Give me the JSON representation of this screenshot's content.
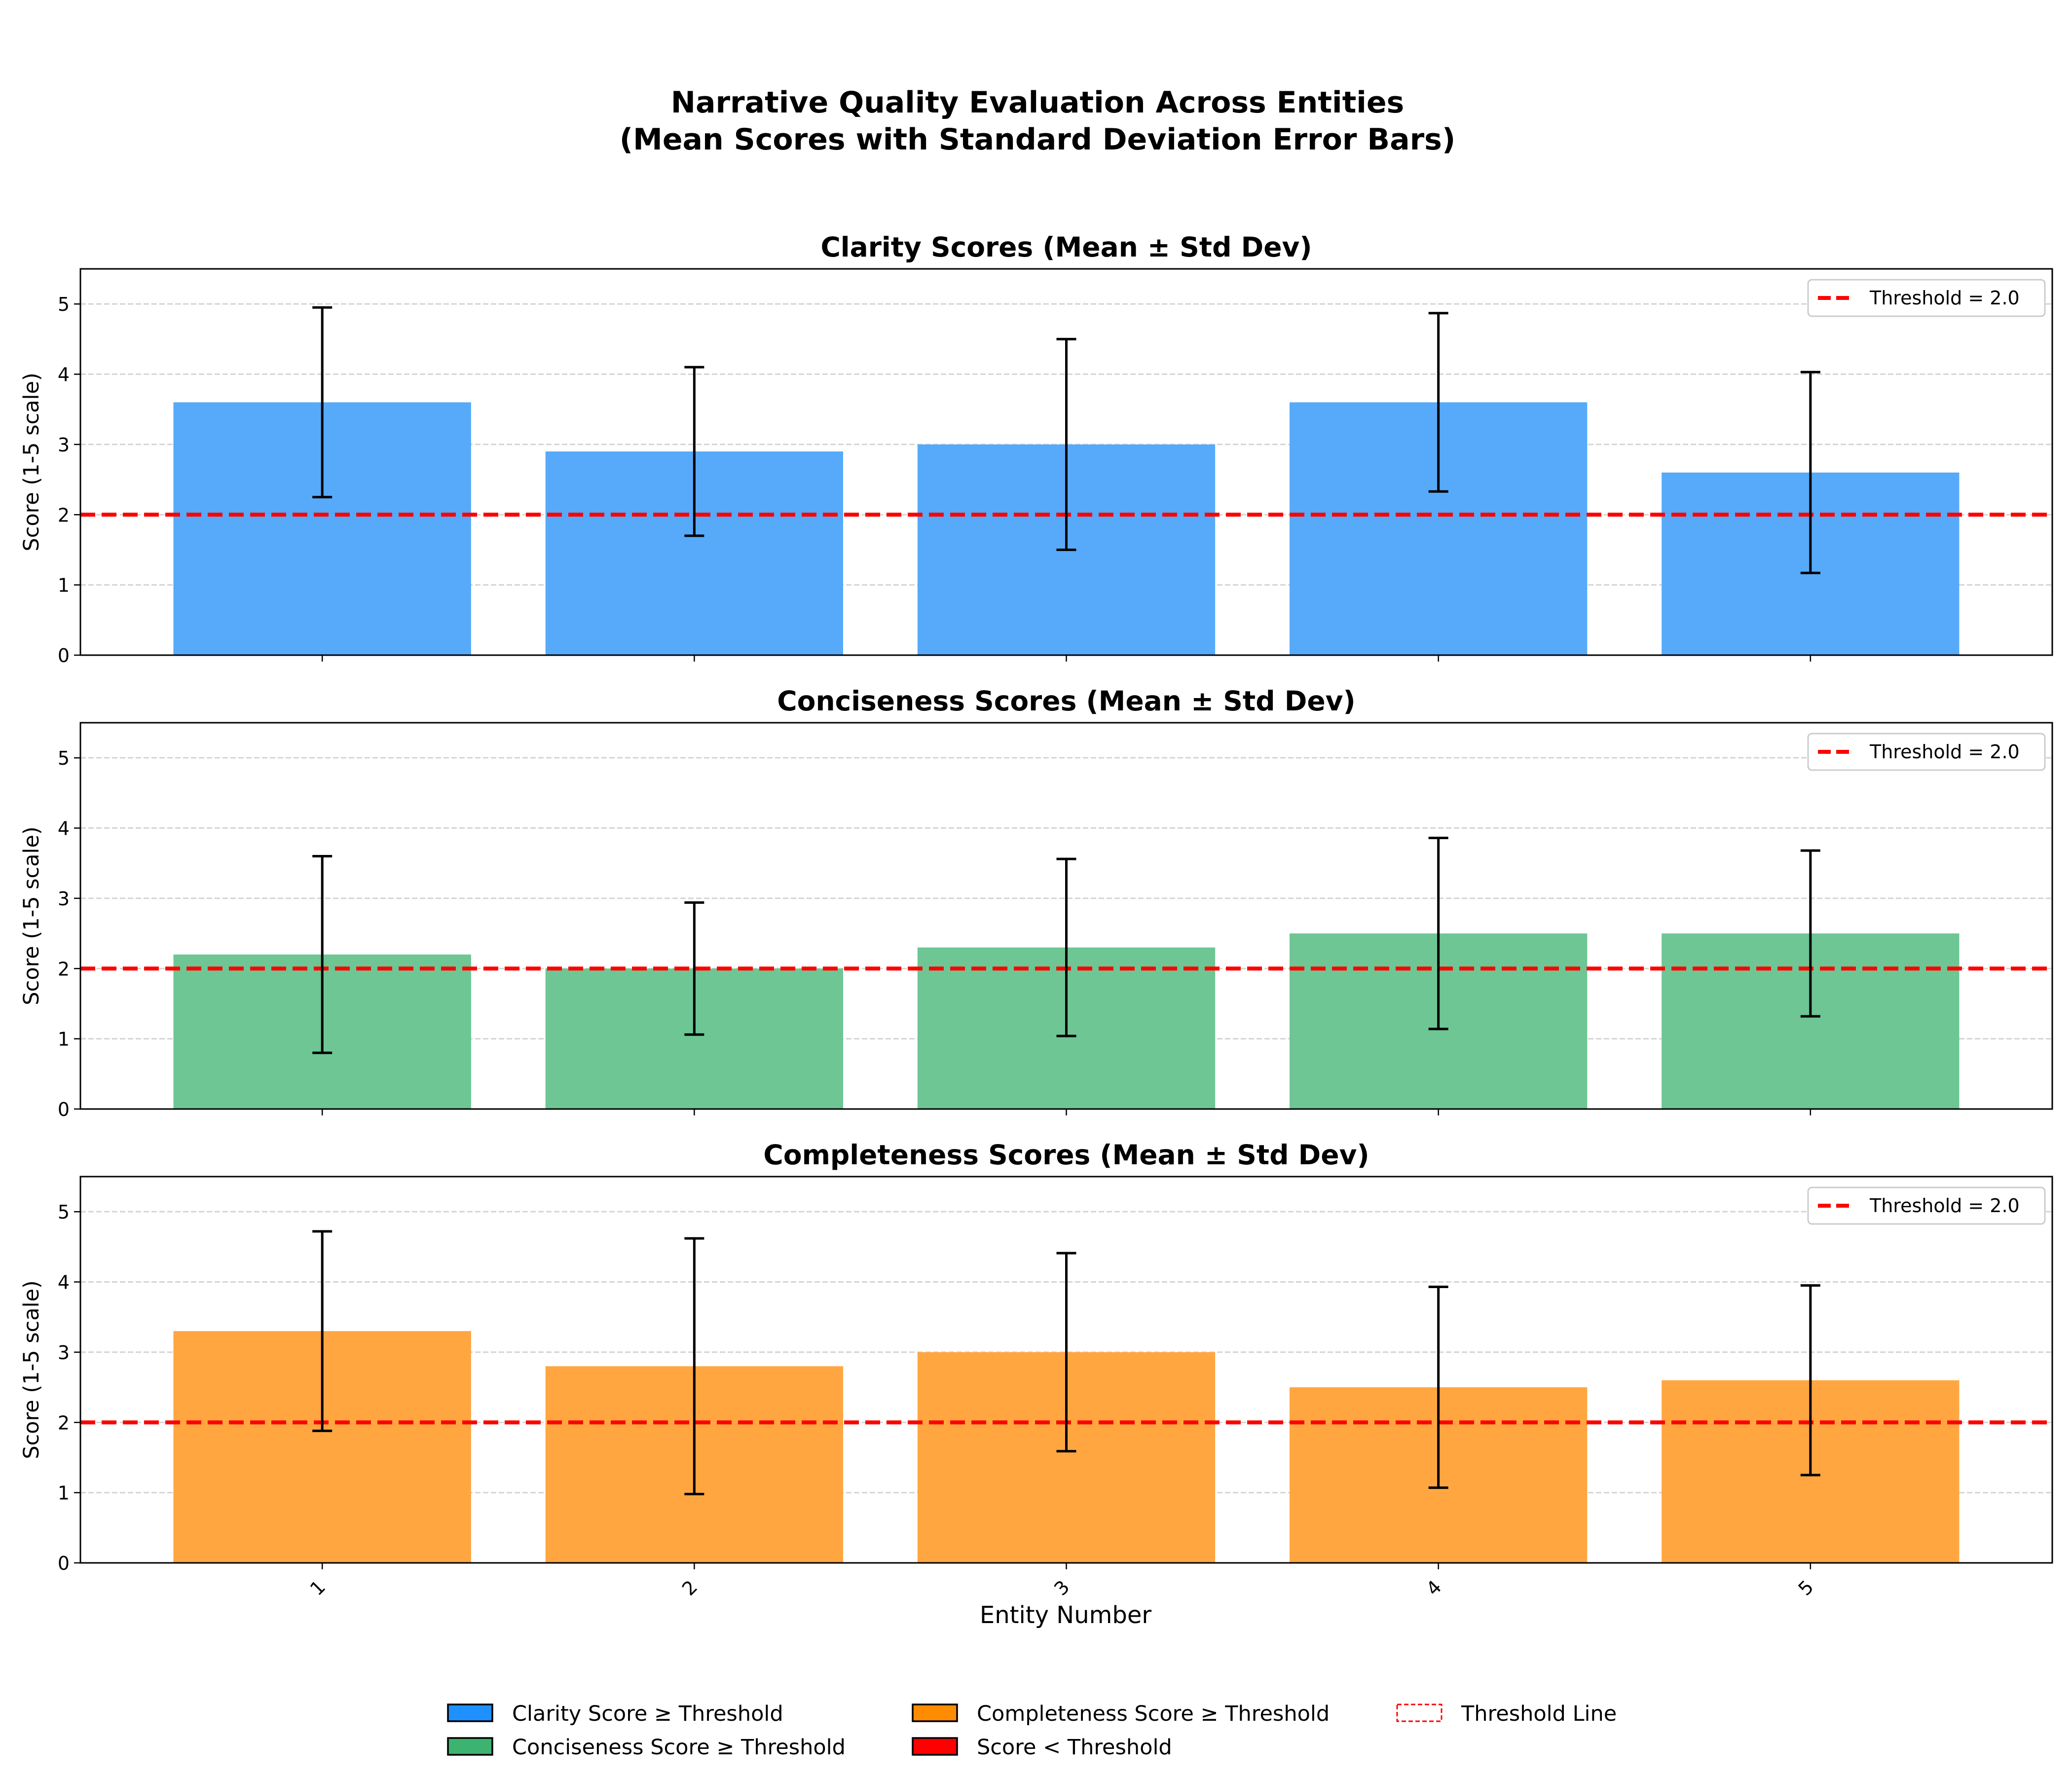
{
  "figure": {
    "title_line1": "Narrative Quality Evaluation Across Entities",
    "title_line2": "(Mean Scores with Standard Deviation Error Bars)",
    "xlabel": "Entity Number"
  },
  "colors": {
    "clarity": "#56aaf9",
    "conciseness": "#6dc694",
    "completeness": "#ffa640",
    "threshold": "#ff0000"
  },
  "legend": {
    "clarity": "Clarity Score ≥ Threshold",
    "conciseness": "Conciseness Score ≥ Threshold",
    "completeness": "Completeness Score ≥ Threshold",
    "below": "Score < Threshold",
    "threshold_line": "Threshold Line",
    "swatch_colors": {
      "clarity": "#1e90ff",
      "conciseness": "#3cb371",
      "completeness": "#ff8c00",
      "below": "#ff0000"
    }
  },
  "chart_data": [
    {
      "type": "bar",
      "title": "Clarity Scores (Mean ± Std Dev)",
      "ylabel": "Score (1-5 scale)",
      "categories": [
        "1",
        "2",
        "3",
        "4",
        "5"
      ],
      "values": [
        3.6,
        2.9,
        3.0,
        3.6,
        2.6
      ],
      "errors": [
        1.35,
        1.2,
        1.5,
        1.27,
        1.43
      ],
      "threshold": 2.0,
      "threshold_label": "Threshold = 2.0",
      "ylim": [
        0,
        5.5
      ],
      "yticks": [
        0,
        1,
        2,
        3,
        4,
        5
      ],
      "grid": true,
      "legend_position": "upper right"
    },
    {
      "type": "bar",
      "title": "Conciseness Scores (Mean ± Std Dev)",
      "ylabel": "Score (1-5 scale)",
      "categories": [
        "1",
        "2",
        "3",
        "4",
        "5"
      ],
      "values": [
        2.2,
        2.0,
        2.3,
        2.5,
        2.5
      ],
      "errors": [
        1.4,
        0.94,
        1.26,
        1.36,
        1.18
      ],
      "threshold": 2.0,
      "threshold_label": "Threshold = 2.0",
      "ylim": [
        0,
        5.5
      ],
      "yticks": [
        0,
        1,
        2,
        3,
        4,
        5
      ],
      "grid": true,
      "legend_position": "upper right"
    },
    {
      "type": "bar",
      "title": "Completeness Scores (Mean ± Std Dev)",
      "ylabel": "Score (1-5 scale)",
      "categories": [
        "1",
        "2",
        "3",
        "4",
        "5"
      ],
      "values": [
        3.3,
        2.8,
        3.0,
        2.5,
        2.6
      ],
      "errors": [
        1.42,
        1.82,
        1.41,
        1.43,
        1.35
      ],
      "threshold": 2.0,
      "threshold_label": "Threshold = 2.0",
      "ylim": [
        0,
        5.5
      ],
      "yticks": [
        0,
        1,
        2,
        3,
        4,
        5
      ],
      "grid": true,
      "legend_position": "upper right"
    }
  ]
}
